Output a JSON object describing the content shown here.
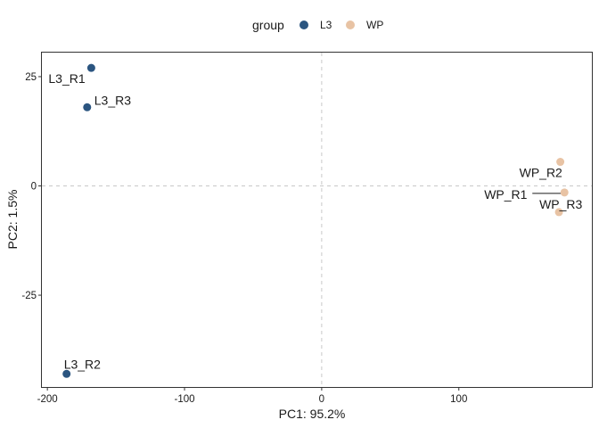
{
  "chart_data": {
    "type": "scatter",
    "xlabel": "PC1: 95.2%",
    "ylabel": "PC2: 1.5%",
    "xlim": [
      -204,
      197
    ],
    "ylim": [
      -46,
      30.5
    ],
    "xticks": [
      -200,
      -100,
      0,
      100
    ],
    "xtick_labels": [
      "-200",
      "-100",
      "0",
      "100"
    ],
    "yticks": [
      25,
      0,
      -25
    ],
    "ytick_labels": [
      "25",
      "0",
      "-25"
    ],
    "grid": false,
    "reference_lines": {
      "x": 0,
      "y": 0,
      "style": "dashed"
    },
    "legend": {
      "title": "group",
      "position": "top",
      "entries": [
        {
          "name": "L3",
          "color": "#2b5580"
        },
        {
          "name": "WP",
          "color": "#e8c3a4"
        }
      ]
    },
    "series": [
      {
        "name": "L3",
        "color": "#2b5580",
        "points": [
          {
            "x": -168,
            "y": 27,
            "label": "L3_R1"
          },
          {
            "x": -171,
            "y": 18,
            "label": "L3_R3"
          },
          {
            "x": -186,
            "y": -43,
            "label": "L3_R2"
          }
        ]
      },
      {
        "name": "WP",
        "color": "#e8c3a4",
        "points": [
          {
            "x": 174,
            "y": 5.5,
            "label": "WP_R2"
          },
          {
            "x": 177,
            "y": -1.5,
            "label": "WP_R1"
          },
          {
            "x": 173,
            "y": -6,
            "label": "WP_R3"
          }
        ]
      }
    ]
  }
}
